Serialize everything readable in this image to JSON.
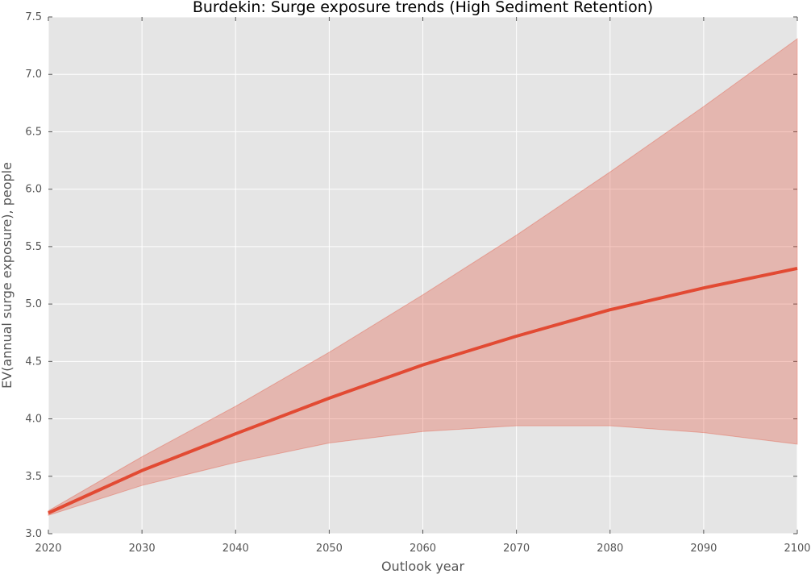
{
  "chart_data": {
    "type": "line",
    "title": "Burdekin: Surge exposure trends (High Sediment Retention)",
    "xlabel": "Outlook year",
    "ylabel": "EV(annual surge exposure), people",
    "xlim": [
      2020,
      2100
    ],
    "ylim": [
      3.0,
      7.5
    ],
    "x_ticks": [
      "2020",
      "2030",
      "2040",
      "2050",
      "2060",
      "2070",
      "2080",
      "2090",
      "2100"
    ],
    "y_ticks": [
      "3.0",
      "3.5",
      "4.0",
      "4.5",
      "5.0",
      "5.5",
      "6.0",
      "6.5",
      "7.0",
      "7.5"
    ],
    "grid": true,
    "legend": false,
    "x": [
      2020,
      2030,
      2040,
      2050,
      2060,
      2070,
      2080,
      2090,
      2100
    ],
    "series": [
      {
        "values": [
          3.18,
          3.55,
          3.87,
          4.18,
          4.47,
          4.72,
          4.95,
          5.14,
          5.31
        ],
        "lower": [
          3.16,
          3.42,
          3.62,
          3.79,
          3.89,
          3.94,
          3.94,
          3.88,
          3.78
        ],
        "upper": [
          3.2,
          3.67,
          4.11,
          4.58,
          5.08,
          5.6,
          6.15,
          6.72,
          7.31
        ],
        "color": "#e24a33"
      }
    ],
    "colors": {
      "background": "#e5e5e5",
      "grid": "#ffffff",
      "line": "#e24a33",
      "band": "#e24a33"
    }
  }
}
